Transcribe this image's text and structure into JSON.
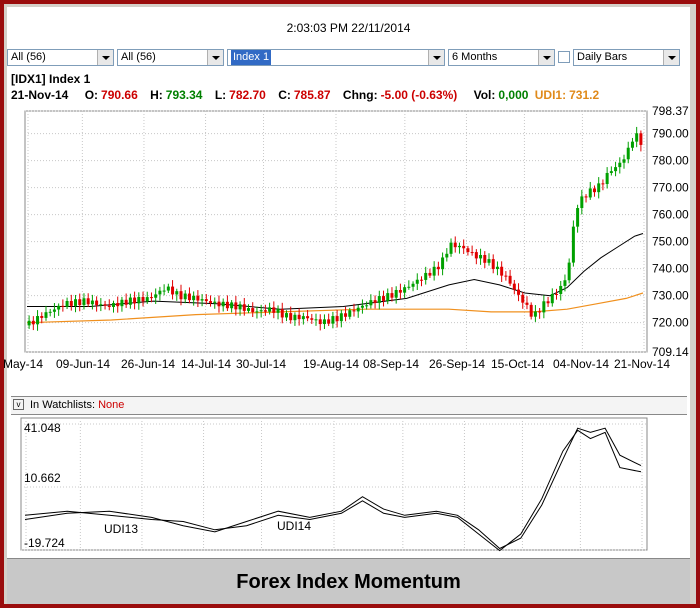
{
  "window": {
    "clock": "2:03:03 PM 22/11/2014"
  },
  "toolbar": {
    "filter1": "All (56)",
    "filter2": "All  (56)",
    "symbol": "Index 1",
    "period": "6 Months",
    "bars": "Daily Bars"
  },
  "quote": {
    "header": "[IDX1]  Index 1",
    "date": "21-Nov-14",
    "open_label": "O:",
    "open": "790.66",
    "high_label": "H:",
    "high": "793.34",
    "low_label": "L:",
    "low": "782.70",
    "close_label": "C:",
    "close": "785.87",
    "change_label": "Chng:",
    "change": "-5.00 (-0.63%)",
    "vol_label": "Vol:",
    "vol": "0,000",
    "udi_label": "UDI1:",
    "udi": "731.2"
  },
  "watchlist": {
    "label": "In Watchlists:",
    "value": "None"
  },
  "footer": {
    "title": "Forex Index Momentum"
  },
  "colors": {
    "up": "#00a000",
    "down": "#e00000",
    "ma_fast": "#000000",
    "ma_slow": "#f0901e",
    "frame": "#9a0c0c"
  },
  "chart_data": [
    {
      "type": "candlestick",
      "ylim": [
        709.14,
        798.37
      ],
      "y_ticks": [
        "798.37",
        "790.00",
        "780.00",
        "770.00",
        "760.00",
        "750.00",
        "740.00",
        "730.00",
        "720.00",
        "709.14"
      ],
      "x_ticks": [
        "May-14",
        "09-Jun-14",
        "26-Jun-14",
        "14-Jul-14",
        "30-Jul-14",
        "19-Aug-14",
        "08-Sep-14",
        "26-Sep-14",
        "15-Oct-14",
        "04-Nov-14",
        "21-Nov-14"
      ],
      "close_path": [
        [
          0,
          719
        ],
        [
          8,
          723
        ],
        [
          18,
          727
        ],
        [
          28,
          728
        ],
        [
          38,
          726
        ],
        [
          48,
          728
        ],
        [
          58,
          729
        ],
        [
          66,
          733
        ],
        [
          72,
          730
        ],
        [
          80,
          729
        ],
        [
          90,
          727
        ],
        [
          100,
          726
        ],
        [
          108,
          724
        ],
        [
          116,
          725
        ],
        [
          124,
          722
        ],
        [
          132,
          722
        ],
        [
          140,
          720
        ],
        [
          148,
          722
        ],
        [
          156,
          725
        ],
        [
          164,
          728
        ],
        [
          172,
          730
        ],
        [
          180,
          733
        ],
        [
          188,
          737
        ],
        [
          194,
          740
        ],
        [
          198,
          744
        ],
        [
          200,
          749
        ],
        [
          206,
          748
        ],
        [
          212,
          745
        ],
        [
          218,
          743
        ],
        [
          224,
          739
        ],
        [
          228,
          736
        ],
        [
          232,
          731
        ],
        [
          236,
          727
        ],
        [
          240,
          722
        ],
        [
          244,
          726
        ],
        [
          248,
          729
        ],
        [
          252,
          732
        ],
        [
          256,
          737
        ],
        [
          258,
          748
        ],
        [
          260,
          762
        ],
        [
          264,
          767
        ],
        [
          268,
          769
        ],
        [
          272,
          771
        ],
        [
          276,
          776
        ],
        [
          280,
          778
        ],
        [
          284,
          782
        ],
        [
          288,
          790
        ],
        [
          292,
          786
        ]
      ],
      "ma_fast": [
        [
          0,
          726
        ],
        [
          30,
          726
        ],
        [
          60,
          728
        ],
        [
          90,
          727
        ],
        [
          120,
          725
        ],
        [
          150,
          726
        ],
        [
          180,
          729
        ],
        [
          200,
          734
        ],
        [
          212,
          736
        ],
        [
          224,
          734
        ],
        [
          236,
          731
        ],
        [
          248,
          730
        ],
        [
          256,
          733
        ],
        [
          264,
          739
        ],
        [
          272,
          744
        ],
        [
          280,
          748
        ],
        [
          288,
          752
        ],
        [
          292,
          753
        ]
      ],
      "ma_slow": [
        [
          0,
          720
        ],
        [
          40,
          721
        ],
        [
          80,
          723
        ],
        [
          120,
          724
        ],
        [
          160,
          725
        ],
        [
          200,
          725
        ],
        [
          220,
          724
        ],
        [
          240,
          724
        ],
        [
          256,
          725
        ],
        [
          270,
          727
        ],
        [
          284,
          729
        ],
        [
          292,
          731
        ]
      ]
    },
    {
      "type": "line",
      "ylim": [
        -19.724,
        41.048
      ],
      "y_ticks": [
        "41.048",
        "10.662",
        "-19.724"
      ],
      "series": [
        {
          "name": "UDI13",
          "values": [
            [
              0,
              -3
            ],
            [
              20,
              -1
            ],
            [
              40,
              -3
            ],
            [
              60,
              -5
            ],
            [
              75,
              -6
            ],
            [
              90,
              -10
            ],
            [
              105,
              -8
            ],
            [
              120,
              -3
            ],
            [
              135,
              -5
            ],
            [
              150,
              -2
            ],
            [
              160,
              4
            ],
            [
              170,
              -2
            ],
            [
              180,
              -4
            ],
            [
              195,
              -2
            ],
            [
              205,
              -4
            ],
            [
              215,
              -12
            ],
            [
              225,
              -20
            ],
            [
              235,
              -12
            ],
            [
              245,
              5
            ],
            [
              255,
              28
            ],
            [
              262,
              38
            ],
            [
              268,
              34
            ],
            [
              275,
              37
            ],
            [
              282,
              20
            ],
            [
              292,
              18
            ]
          ]
        },
        {
          "name": "UDI14",
          "values": [
            [
              0,
              -5
            ],
            [
              20,
              -2
            ],
            [
              40,
              -1
            ],
            [
              60,
              -4
            ],
            [
              75,
              -8
            ],
            [
              90,
              -11
            ],
            [
              105,
              -6
            ],
            [
              120,
              -1
            ],
            [
              135,
              -4
            ],
            [
              150,
              -1
            ],
            [
              160,
              6
            ],
            [
              170,
              0
            ],
            [
              180,
              -3
            ],
            [
              195,
              -1
            ],
            [
              205,
              -3
            ],
            [
              215,
              -10
            ],
            [
              225,
              -19
            ],
            [
              235,
              -14
            ],
            [
              245,
              2
            ],
            [
              255,
              24
            ],
            [
              262,
              39
            ],
            [
              268,
              37
            ],
            [
              275,
              39
            ],
            [
              282,
              26
            ],
            [
              292,
              21
            ]
          ]
        }
      ]
    }
  ]
}
